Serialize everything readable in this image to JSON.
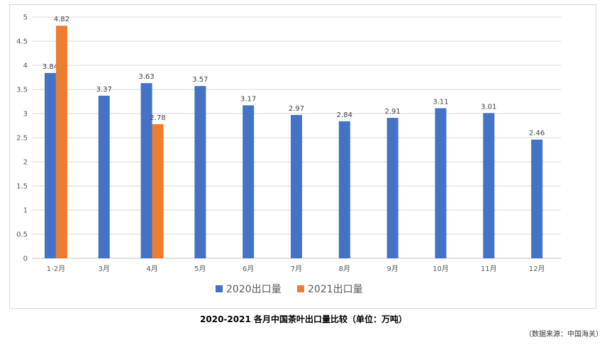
{
  "chart_data": {
    "type": "bar",
    "categories": [
      "1-2月",
      "3月",
      "4月",
      "5月",
      "6月",
      "7月",
      "8月",
      "9月",
      "10月",
      "11月",
      "12月"
    ],
    "series": [
      {
        "name": "2020出口量",
        "color": "#4472c4",
        "values": [
          3.84,
          3.37,
          3.63,
          3.57,
          3.17,
          2.97,
          2.84,
          2.91,
          3.11,
          3.01,
          2.46
        ]
      },
      {
        "name": "2021出口量",
        "color": "#ed7d31",
        "values": [
          4.82,
          null,
          2.78,
          null,
          null,
          null,
          null,
          null,
          null,
          null,
          null
        ]
      }
    ],
    "ylim": [
      0,
      5
    ],
    "yticks": [
      "0",
      "0.5",
      "1",
      "1.5",
      "2",
      "2.5",
      "3",
      "3.5",
      "4",
      "4.5",
      "5"
    ],
    "grid": true,
    "legend_position": "bottom",
    "title": "2020-2021 各月中国茶叶出口量比较（单位：万吨）",
    "source": "（数据来源：中国海关）"
  }
}
